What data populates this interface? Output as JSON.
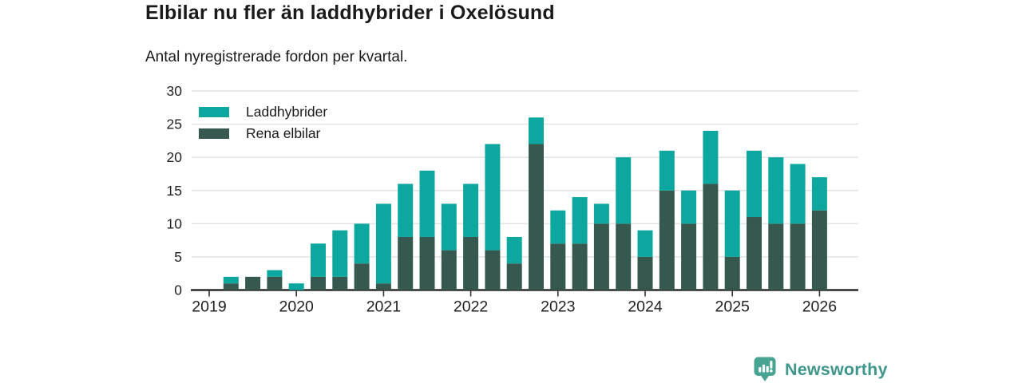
{
  "chart_data": {
    "type": "bar",
    "stacked": true,
    "title": "Elbilar nu fler än laddhybrider i Oxelösund",
    "subtitle": "Antal nyregistrerade fordon per kvartal.",
    "ylim": [
      0,
      30
    ],
    "y_ticks": [
      0,
      5,
      10,
      15,
      20,
      25,
      30
    ],
    "x_year_ticks": [
      "2019",
      "2020",
      "2021",
      "2022",
      "2023",
      "2024",
      "2025",
      "2026"
    ],
    "grid": "horizontal",
    "legend_position": "top-left-inside",
    "categories": [
      "2019 Q2",
      "2019 Q3",
      "2019 Q4",
      "2020 Q1",
      "2020 Q2",
      "2020 Q3",
      "2020 Q4",
      "2021 Q1",
      "2021 Q2",
      "2021 Q3",
      "2021 Q4",
      "2022 Q1",
      "2022 Q2",
      "2022 Q3",
      "2022 Q4",
      "2023 Q1",
      "2023 Q2",
      "2023 Q3",
      "2023 Q4",
      "2024 Q1",
      "2024 Q2",
      "2024 Q3",
      "2024 Q4",
      "2025 Q1",
      "2025 Q2",
      "2025 Q3",
      "2025 Q4",
      "2026 Q1"
    ],
    "series": [
      {
        "name": "Laddhybrider",
        "color": "#0ca79e",
        "stack_position": "top",
        "values": [
          1,
          0,
          1,
          1,
          5,
          7,
          6,
          12,
          8,
          10,
          7,
          8,
          16,
          4,
          4,
          5,
          7,
          3,
          10,
          4,
          6,
          5,
          8,
          10,
          10,
          10,
          9,
          5
        ]
      },
      {
        "name": "Rena elbilar",
        "color": "#36594f",
        "stack_position": "bottom",
        "values": [
          1,
          2,
          2,
          0,
          2,
          2,
          4,
          1,
          8,
          8,
          6,
          8,
          6,
          4,
          22,
          7,
          7,
          10,
          10,
          5,
          15,
          10,
          16,
          5,
          11,
          10,
          10,
          12
        ]
      }
    ],
    "totals": [
      2,
      2,
      3,
      1,
      7,
      9,
      10,
      13,
      16,
      18,
      13,
      16,
      22,
      8,
      26,
      12,
      14,
      13,
      20,
      9,
      21,
      15,
      24,
      15,
      21,
      20,
      19,
      17
    ]
  },
  "colors": {
    "gridline": "#e1e1e1",
    "axis_line": "#2a2a2a",
    "tick": "#333333",
    "axis_text": "#222222"
  },
  "branding": {
    "name": "Newsworthy",
    "badge_color": "#47a392",
    "text_color": "#3f968b"
  }
}
